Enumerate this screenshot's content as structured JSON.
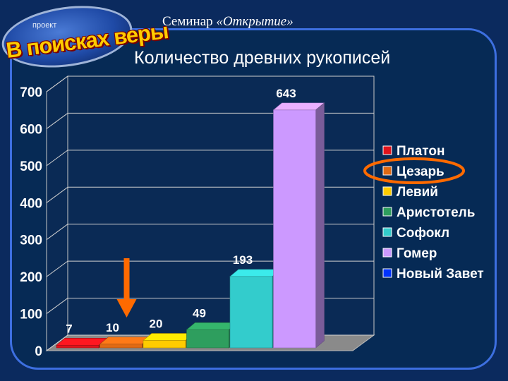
{
  "header": {
    "seminar_prefix": "Семинар",
    "seminar_title": "«Открытие»"
  },
  "logo": {
    "small_text": "проект",
    "main_text": "В поисках веры"
  },
  "chart_data": {
    "type": "bar",
    "title": "Количество древних рукописей",
    "xlabel": "",
    "ylabel": "",
    "ylim": [
      0,
      700
    ],
    "yticks": [
      0,
      100,
      200,
      300,
      400,
      500,
      600,
      700
    ],
    "categories": [
      "Платон",
      "Цезарь",
      "Левий",
      "Аристотель",
      "Софокл",
      "Гомер",
      "Новый Завет"
    ],
    "values": [
      7,
      10,
      20,
      49,
      193,
      643,
      null
    ],
    "data_labels": [
      "7",
      "10",
      "20",
      "49",
      "193",
      "643",
      ""
    ],
    "colors": [
      "#e0141c",
      "#e06a14",
      "#ffcc00",
      "#2e9e5e",
      "#33cccc",
      "#cc99ff",
      "#0033ff"
    ],
    "legend": {
      "position": "right",
      "entries": [
        "Платон",
        "Цезарь",
        "Левий",
        "Аристотель",
        "Софокл",
        "Гомер",
        "Новый Завет"
      ]
    },
    "grid": true,
    "style": "3d",
    "annotations": {
      "highlight_legend_entry": "Цезарь",
      "highlight_color": "#ff6a00",
      "arrow_target_category": "Цезарь"
    }
  }
}
